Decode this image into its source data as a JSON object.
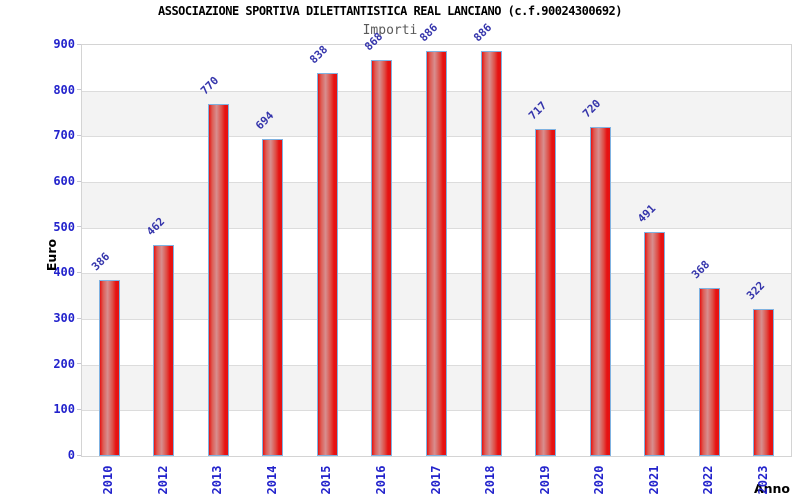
{
  "chart_data": {
    "type": "bar",
    "title": "ASSOCIAZIONE SPORTIVA DILETTANTISTICA REAL LANCIANO (c.f.90024300692)",
    "subtitle": "Importi",
    "xlabel": "Anno",
    "ylabel": "Euro",
    "categories": [
      "2010",
      "2012",
      "2013",
      "2014",
      "2015",
      "2016",
      "2017",
      "2018",
      "2019",
      "2020",
      "2021",
      "2022",
      "2023"
    ],
    "values": [
      386,
      462,
      770,
      694,
      838,
      868,
      886,
      886,
      717,
      720,
      491,
      368,
      322
    ],
    "ylim": [
      0,
      900
    ],
    "ytick_step": 100,
    "grid": "horizontal-bands-alternating",
    "legend": "none",
    "colors": {
      "bar_fill_edge": "#e61212",
      "bar_fill_mid": "#d78f8f",
      "bar_border": "#7fb2e1",
      "tick_text": "#2323cc",
      "value_label_text": "#3434ab",
      "band_alt": "#f3f3f3",
      "gridline": "#dcdcdc",
      "plot_border": "#d4d4d4",
      "title_text": "#000000",
      "subtitle_text": "#5a5a5a",
      "axis_title_text": "#000000"
    }
  }
}
